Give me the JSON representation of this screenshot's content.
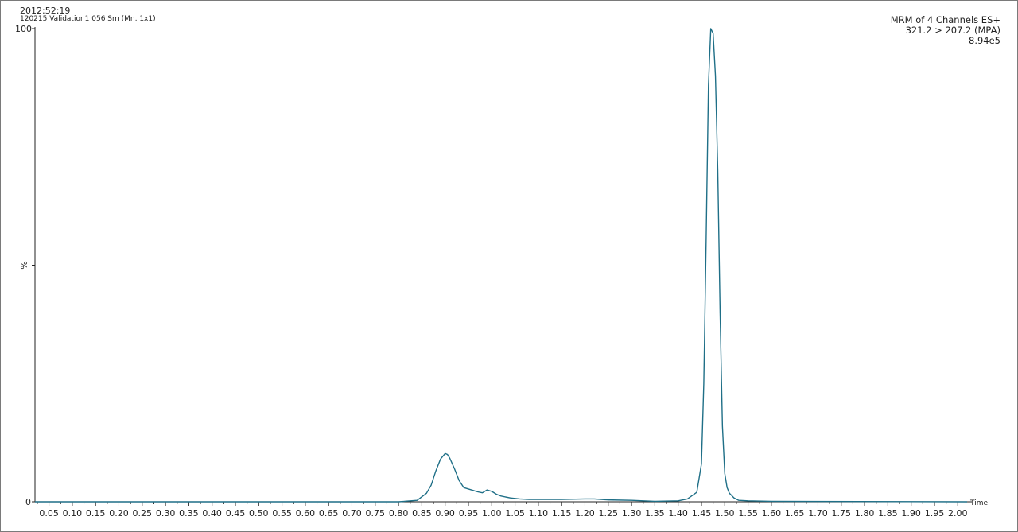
{
  "header": {
    "timestamp": "2012:52:19",
    "sample": "120215 Validation1 056 Sm (Mn, 1x1)"
  },
  "annotation": {
    "line1": "MRM of 4 Channels ES+",
    "line2": "321.2 > 207.2 (MPA)",
    "line3": "8.94e5"
  },
  "chart_data": {
    "type": "line",
    "title": "",
    "xlabel": "Time",
    "ylabel": "%",
    "xlim": [
      0.02,
      2.02
    ],
    "ylim": [
      0,
      100
    ],
    "x_ticks": [
      "0.05",
      "0.10",
      "0.15",
      "0.20",
      "0.25",
      "0.30",
      "0.35",
      "0.40",
      "0.45",
      "0.50",
      "0.55",
      "0.60",
      "0.65",
      "0.70",
      "0.75",
      "0.80",
      "0.85",
      "0.90",
      "0.95",
      "1.00",
      "1.05",
      "1.10",
      "1.15",
      "1.20",
      "1.25",
      "1.30",
      "1.35",
      "1.40",
      "1.45",
      "1.50",
      "1.55",
      "1.60",
      "1.65",
      "1.70",
      "1.75",
      "1.80",
      "1.85",
      "1.90",
      "1.95",
      "2.00"
    ],
    "y_ticks": [
      "0",
      "%",
      "100"
    ],
    "color": "#1f6f87",
    "series": [
      {
        "x": [
          0.02,
          0.8,
          0.84,
          0.86,
          0.87,
          0.88,
          0.89,
          0.9,
          0.905,
          0.91,
          0.92,
          0.93,
          0.94,
          0.95,
          0.96,
          0.97,
          0.98,
          0.99,
          1.0,
          1.01,
          1.02,
          1.04,
          1.06,
          1.08,
          1.1,
          1.15,
          1.2,
          1.22,
          1.25,
          1.3,
          1.35,
          1.4,
          1.42,
          1.44,
          1.45,
          1.455,
          1.46,
          1.465,
          1.47,
          1.475,
          1.48,
          1.485,
          1.49,
          1.495,
          1.5,
          1.505,
          1.51,
          1.52,
          1.53,
          1.55,
          1.6,
          2.02
        ],
        "y": [
          0,
          0,
          0.3,
          1.8,
          3.5,
          6.5,
          9.0,
          10.2,
          10.0,
          9.2,
          7.0,
          4.5,
          3.0,
          2.7,
          2.4,
          2.1,
          1.9,
          2.5,
          2.2,
          1.6,
          1.2,
          0.8,
          0.6,
          0.5,
          0.5,
          0.5,
          0.6,
          0.6,
          0.4,
          0.3,
          0.1,
          0.2,
          0.6,
          2.0,
          8.0,
          25.0,
          55.0,
          88.0,
          100.0,
          99.0,
          90.0,
          70.0,
          40.0,
          16.0,
          6.0,
          3.0,
          1.8,
          0.8,
          0.3,
          0.2,
          0.1,
          0
        ]
      }
    ]
  }
}
